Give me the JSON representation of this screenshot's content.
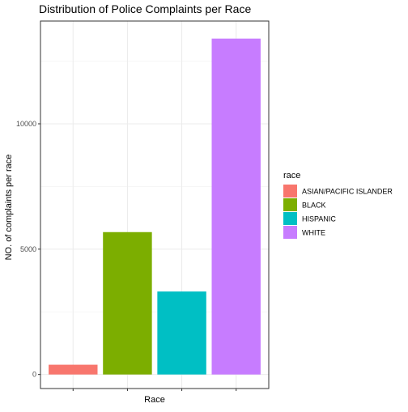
{
  "chart_data": {
    "type": "bar",
    "title": "Distribution of Police Complaints per Race",
    "xlabel": "Race",
    "ylabel": "NO. of complaints per race",
    "categories": [
      "ASIAN/PACIFIC ISLANDER",
      "BLACK",
      "HISPANIC",
      "WHITE"
    ],
    "values": [
      390,
      5680,
      3310,
      13400
    ],
    "colors": [
      "#F8766D",
      "#7CAE00",
      "#00BFC4",
      "#C77CFF"
    ],
    "ylim": [
      -560,
      14100
    ],
    "yticks": [
      0,
      5000,
      10000
    ],
    "ytick_labels": [
      "0",
      "5000",
      "10000"
    ],
    "grid": true,
    "legend": {
      "title": "race",
      "position": "right",
      "entries": [
        "ASIAN/PACIFIC ISLANDER",
        "BLACK",
        "HISPANIC",
        "WHITE"
      ]
    }
  }
}
